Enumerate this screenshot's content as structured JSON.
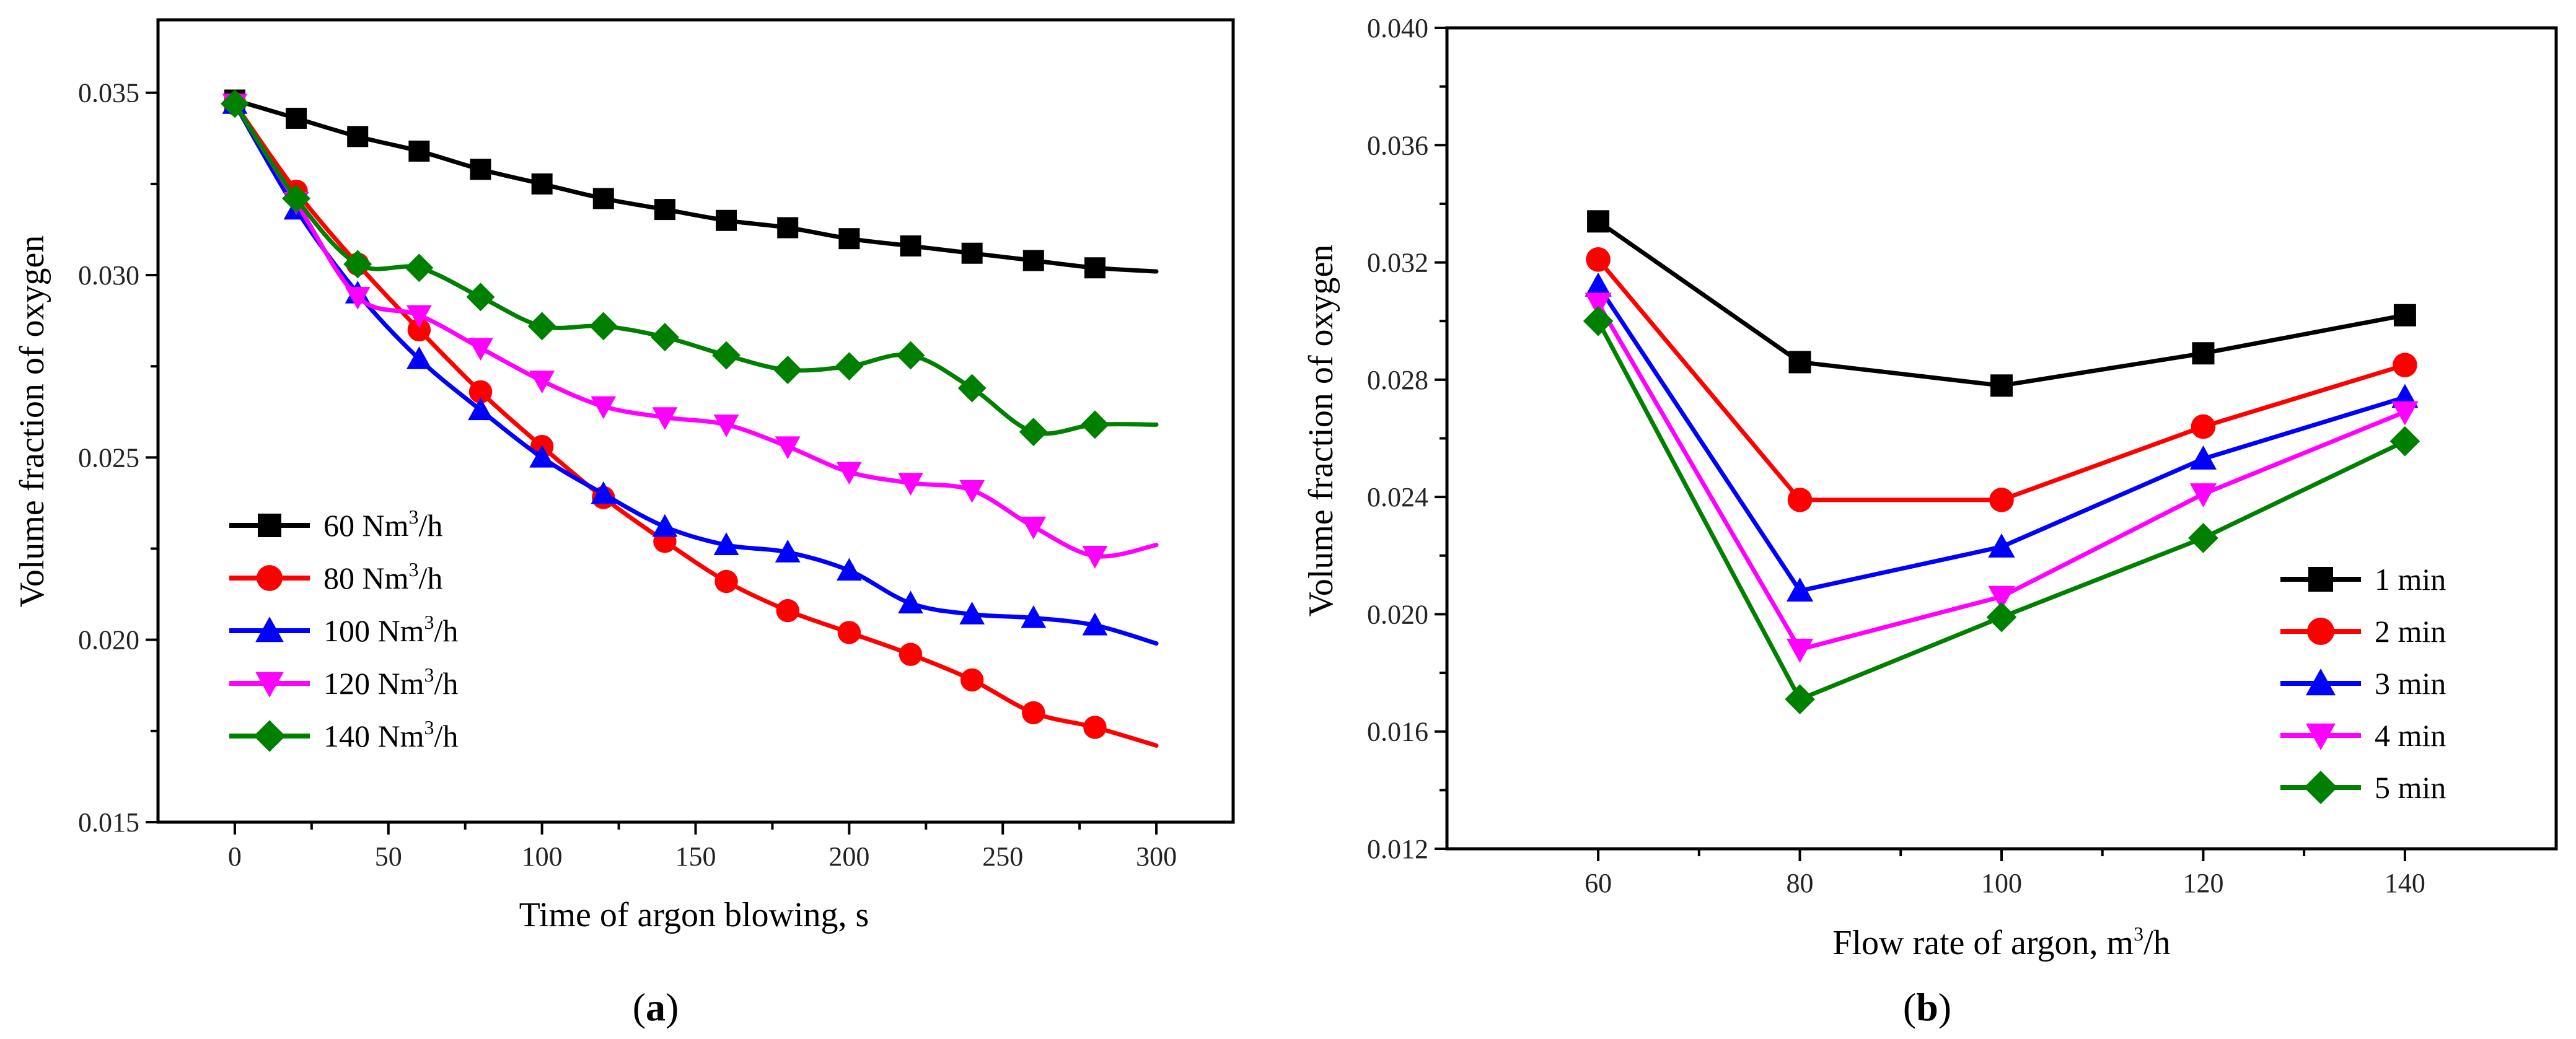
{
  "chart_data": [
    {
      "type": "line",
      "panel_label": "a",
      "xlabel": "Time of argon blowing, s",
      "ylabel": "Volume fraction of oxygen",
      "xlim": [
        -25,
        325
      ],
      "ylim": [
        0.015,
        0.037
      ],
      "xticks": [
        0,
        50,
        100,
        150,
        200,
        250,
        300
      ],
      "yticks": [
        0.015,
        0.02,
        0.025,
        0.03,
        0.035
      ],
      "ytick_labels": [
        "0.015",
        "0.020",
        "0.025",
        "0.030",
        "0.035"
      ],
      "legend_position": "lower-left",
      "x": [
        0,
        20,
        40,
        60,
        80,
        100,
        120,
        140,
        160,
        180,
        200,
        220,
        240,
        260,
        280,
        300
      ],
      "series": [
        {
          "name": "60 Nm",
          "unit_sup": "3",
          "unit_tail": "/h",
          "color": "#000000",
          "marker": "square",
          "values": [
            0.0348,
            0.0343,
            0.0338,
            0.0334,
            0.0329,
            0.0325,
            0.0321,
            0.0318,
            0.0315,
            0.0313,
            0.031,
            0.0308,
            0.0306,
            0.0304,
            0.0302,
            0.0301
          ]
        },
        {
          "name": "80 Nm",
          "unit_sup": "3",
          "unit_tail": "/h",
          "color": "#ff0000",
          "marker": "circle",
          "values": [
            0.0347,
            0.0323,
            0.0303,
            0.0285,
            0.0268,
            0.0253,
            0.0239,
            0.0227,
            0.0216,
            0.0208,
            0.0202,
            0.0196,
            0.0189,
            0.018,
            0.0176,
            0.0171
          ]
        },
        {
          "name": "100 Nm",
          "unit_sup": "3",
          "unit_tail": "/h",
          "color": "#0000ff",
          "marker": "triangle-up",
          "values": [
            0.0347,
            0.0318,
            0.0295,
            0.0277,
            0.0263,
            0.025,
            0.024,
            0.0231,
            0.0226,
            0.0224,
            0.0219,
            0.021,
            0.0207,
            0.0206,
            0.0204,
            0.0199
          ]
        },
        {
          "name": "120 Nm",
          "unit_sup": "3",
          "unit_tail": "/h",
          "color": "#ff00ff",
          "marker": "triangle-down",
          "values": [
            0.0347,
            0.032,
            0.0294,
            0.0289,
            0.028,
            0.0271,
            0.0264,
            0.0261,
            0.0259,
            0.0253,
            0.0246,
            0.0243,
            0.0241,
            0.0231,
            0.0223,
            0.0226
          ]
        },
        {
          "name": "140 Nm",
          "unit_sup": "3",
          "unit_tail": "/h",
          "color": "#008000",
          "marker": "diamond",
          "values": [
            0.0347,
            0.0321,
            0.0303,
            0.0302,
            0.0294,
            0.0286,
            0.0286,
            0.0283,
            0.0278,
            0.0274,
            0.0275,
            0.0278,
            0.0269,
            0.0257,
            0.0259,
            0.0259
          ]
        }
      ]
    },
    {
      "type": "line",
      "panel_label": "b",
      "xlabel": "Flow rate of argon, m",
      "xlabel_sup": "3",
      "xlabel_tail": "/h",
      "ylabel": "Volume fraction of oxygen",
      "xlim": [
        45,
        155
      ],
      "ylim": [
        0.012,
        0.04
      ],
      "xticks": [
        60,
        80,
        100,
        120,
        140
      ],
      "yticks": [
        0.012,
        0.016,
        0.02,
        0.024,
        0.028,
        0.032,
        0.036,
        0.04
      ],
      "ytick_labels": [
        "0.012",
        "0.016",
        "0.020",
        "0.024",
        "0.028",
        "0.032",
        "0.036",
        "0.040"
      ],
      "legend_position": "lower-right",
      "x": [
        60,
        80,
        100,
        120,
        140
      ],
      "series": [
        {
          "name": "1 min",
          "color": "#000000",
          "marker": "square",
          "values": [
            0.0334,
            0.0286,
            0.0278,
            0.0289,
            0.0302
          ]
        },
        {
          "name": "2 min",
          "color": "#ff0000",
          "marker": "circle",
          "values": [
            0.0321,
            0.0239,
            0.0239,
            0.0264,
            0.0285
          ]
        },
        {
          "name": "3 min",
          "color": "#0000ff",
          "marker": "triangle-up",
          "values": [
            0.0312,
            0.0208,
            0.0223,
            0.0253,
            0.0274
          ]
        },
        {
          "name": "4 min",
          "color": "#ff00ff",
          "marker": "triangle-down",
          "values": [
            0.0306,
            0.0188,
            0.0206,
            0.0241,
            0.0269
          ]
        },
        {
          "name": "5 min",
          "color": "#008000",
          "marker": "diamond",
          "values": [
            0.03,
            0.0171,
            0.0199,
            0.0226,
            0.0259
          ]
        }
      ]
    }
  ]
}
